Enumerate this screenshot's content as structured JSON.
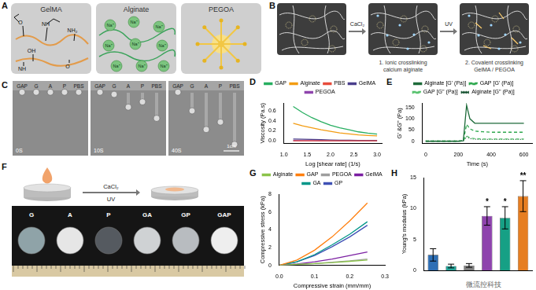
{
  "panels": {
    "A": {
      "label": "A",
      "boxes": [
        "GelMA",
        "Alginate",
        "PEGOA"
      ],
      "structure_texts": [
        "O",
        "NH",
        "NH₂",
        "OH",
        "NH",
        "O"
      ],
      "ion": "Na⁺"
    },
    "B": {
      "label": "B",
      "steps": [
        "CaCl₂",
        "UV"
      ],
      "captions": [
        [
          "1. Ionic crosslinking",
          "calcium alginate"
        ],
        [
          "2. Covalent crosslinking",
          "GelMA / PEGOA"
        ]
      ]
    },
    "C": {
      "label": "C",
      "samples": [
        "GAP",
        "G",
        "A",
        "P",
        "PBS"
      ],
      "times": [
        "0S",
        "10S",
        "40S"
      ],
      "scale_bar": "1cm"
    },
    "F": {
      "label": "F",
      "reagents": [
        "CaCl₂",
        "UV"
      ],
      "samples": [
        "G",
        "A",
        "P",
        "GA",
        "GP",
        "GAP"
      ]
    }
  },
  "chart_data": [
    {
      "label": "D",
      "type": "line",
      "x_label": "Log [shear rate] (1/s)",
      "y_label": "Viscosity (Pa.s)",
      "x": [
        1.2,
        1.4,
        1.6,
        1.8,
        2.0,
        2.2,
        2.4,
        2.6,
        2.8,
        3.0
      ],
      "series": [
        {
          "name": "GAP",
          "color": "#27ae60",
          "values": [
            0.68,
            0.56,
            0.46,
            0.38,
            0.31,
            0.26,
            0.22,
            0.18,
            0.155,
            0.135
          ]
        },
        {
          "name": "Alginate",
          "color": "#f39c12",
          "values": [
            0.35,
            0.3,
            0.26,
            0.22,
            0.19,
            0.16,
            0.14,
            0.12,
            0.11,
            0.1
          ]
        },
        {
          "name": "PBS",
          "color": "#e74c3c",
          "values": [
            0.003,
            0.003,
            0.003,
            0.003,
            0.003,
            0.003,
            0.003,
            0.003,
            0.003,
            0.003
          ]
        },
        {
          "name": "GelMA",
          "color": "#4a3f8c",
          "values": [
            0.04,
            0.035,
            0.03,
            0.025,
            0.02,
            0.017,
            0.015,
            0.013,
            0.012,
            0.01
          ]
        },
        {
          "name": "PEGOA",
          "color": "#8e44ad",
          "values": [
            0.01,
            0.008,
            0.007,
            0.006,
            0.005,
            0.005,
            0.004,
            0.004,
            0.004,
            0.004
          ]
        }
      ],
      "xlim": [
        1.0,
        3.1
      ],
      "xticks": [
        {
          "value": 1.0,
          "label": "1.0"
        },
        1.5,
        {
          "value": 2.0,
          "label": "2.0"
        },
        2.5,
        {
          "value": 3.0,
          "label": "3.0"
        }
      ],
      "ylim": [
        -0.05,
        0.75
      ],
      "yticks": [
        {
          "value": 0,
          "label": "0.0"
        },
        0.2,
        0.4,
        0.6
      ],
      "grid": false,
      "legend": "top"
    },
    {
      "label": "E",
      "type": "line",
      "x_label": "Time (s)",
      "y_label": "G' &G'' (Pa)",
      "x": [
        0,
        50,
        100,
        150,
        200,
        230,
        250,
        270,
        300,
        350,
        400,
        450,
        500,
        550,
        600
      ],
      "series": [
        {
          "name": "Alginate [G' (Pa)]",
          "color": "#1e6b3a",
          "line_style": "solid",
          "values": [
            0,
            0,
            0,
            0,
            0,
            2,
            160,
            100,
            80,
            80,
            80,
            80,
            80,
            80,
            80
          ]
        },
        {
          "name": "GAP [G' (Pa)]",
          "color": "#2fa84f",
          "line_style": "dashed",
          "values": [
            0,
            0,
            0,
            0,
            0,
            2,
            75,
            55,
            45,
            42,
            40,
            40,
            40,
            40,
            40
          ]
        },
        {
          "name": "GAP [G'' (Pa)]",
          "color": "#57c26e",
          "line_style": "dashed",
          "values": [
            2,
            2,
            2,
            2,
            2,
            3,
            25,
            15,
            12,
            10,
            10,
            10,
            10,
            10,
            10
          ]
        },
        {
          "name": "Alginate [G'' (Pa)]",
          "color": "#0f4d2a",
          "line_style": "dotted",
          "values": [
            1,
            1,
            1,
            1,
            1,
            2,
            20,
            12,
            9,
            8,
            8,
            8,
            8,
            8,
            8
          ]
        }
      ],
      "xlim": [
        -20,
        650
      ],
      "xticks": [
        0,
        200,
        400,
        600
      ],
      "ylim": [
        -10,
        170
      ],
      "yticks": [
        0,
        50,
        100,
        150
      ],
      "grid": false,
      "legend": "top"
    },
    {
      "label": "G",
      "type": "line",
      "x_label": "Compressive strain (mm/mm)",
      "y_label": "Compressive stress (kPa)",
      "x": [
        0,
        0.05,
        0.1,
        0.15,
        0.2,
        0.25
      ],
      "series": [
        {
          "name": "Alginate",
          "color": "#8bc34a",
          "values": [
            0,
            0.1,
            0.2,
            0.3,
            0.45,
            0.6
          ]
        },
        {
          "name": "GAP",
          "color": "#ff7f0e",
          "values": [
            0,
            0.6,
            1.7,
            3.2,
            5.0,
            7.0
          ]
        },
        {
          "name": "PEGOA",
          "color": "#9e9e9e",
          "values": [
            0,
            0.1,
            0.2,
            0.35,
            0.5,
            0.7
          ]
        },
        {
          "name": "GelMA",
          "color": "#7b1fa2",
          "values": [
            0,
            0.15,
            0.4,
            0.7,
            1.1,
            1.5
          ]
        },
        {
          "name": "GA",
          "color": "#009688",
          "values": [
            0,
            0.4,
            1.2,
            2.3,
            3.5,
            4.9
          ]
        },
        {
          "name": "GP",
          "color": "#3f51b5",
          "values": [
            0,
            0.4,
            1.1,
            2.1,
            3.2,
            4.5
          ]
        }
      ],
      "xlim": [
        0,
        0.3
      ],
      "xticks": [
        {
          "value": 0,
          "label": "0.0"
        },
        0.1,
        0.2,
        0.3
      ],
      "ylim": [
        0,
        8
      ],
      "yticks": [
        0,
        2,
        4,
        6,
        8
      ],
      "grid": false,
      "legend": "top"
    },
    {
      "label": "H",
      "type": "bar",
      "y_label": "Young's modulus (kPa)",
      "categories": [
        null,
        null,
        null,
        null,
        null,
        null
      ],
      "values": [
        2.5,
        0.7,
        0.8,
        8.8,
        8.5,
        12.0
      ],
      "errors": [
        1.0,
        0.3,
        0.3,
        1.5,
        1.8,
        2.5
      ],
      "colors": [
        "#2e6fb5",
        "#26a69a",
        "#7f7f7f",
        "#8e44ad",
        "#16a085",
        "#e67e22"
      ],
      "annotations": [
        null,
        null,
        null,
        "*",
        "*",
        "**"
      ],
      "ylim": [
        0,
        15
      ],
      "yticks": [
        0,
        5,
        10,
        15
      ],
      "grid": false,
      "tick_labels": "y"
    }
  ],
  "watermark": "微流控科技"
}
